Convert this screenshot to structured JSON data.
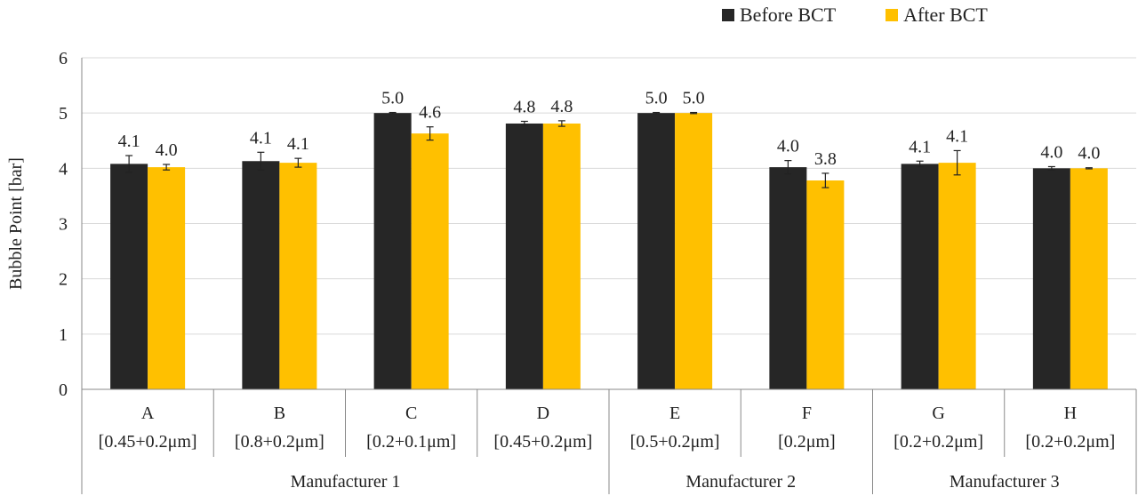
{
  "chart_data": {
    "type": "bar",
    "ylabel": "Bubble Point [bar]",
    "ylim": [
      0,
      6
    ],
    "yticks": [
      "0",
      "1",
      "2",
      "3",
      "4",
      "5",
      "6"
    ],
    "grid": true,
    "legend_position": "top-right",
    "categories": [
      {
        "letter": "A",
        "spec": "[0.45+0.2μm]"
      },
      {
        "letter": "B",
        "spec": "[0.8+0.2μm]"
      },
      {
        "letter": "C",
        "spec": "[0.2+0.1μm]"
      },
      {
        "letter": "D",
        "spec": "[0.45+0.2μm]"
      },
      {
        "letter": "E",
        "spec": "[0.5+0.2μm]"
      },
      {
        "letter": "F",
        "spec": "[0.2μm]"
      },
      {
        "letter": "G",
        "spec": "[0.2+0.2μm]"
      },
      {
        "letter": "H",
        "spec": "[0.2+0.2μm]"
      }
    ],
    "groups": [
      {
        "name": "Manufacturer 1",
        "categories": [
          "A",
          "B",
          "C",
          "D"
        ]
      },
      {
        "name": "Manufacturer 2",
        "categories": [
          "E",
          "F"
        ]
      },
      {
        "name": "Manufacturer 3",
        "categories": [
          "G",
          "H"
        ]
      }
    ],
    "series": [
      {
        "name": "Before BCT",
        "color": "#262626",
        "values": [
          4.08,
          4.13,
          5.0,
          4.81,
          5.0,
          4.02,
          4.08,
          4.0
        ],
        "errors": [
          0.15,
          0.16,
          0.01,
          0.04,
          0.01,
          0.12,
          0.05,
          0.03
        ],
        "labels": [
          "4.1",
          "4.1",
          "5.0",
          "4.8",
          "5.0",
          "4.0",
          "4.1",
          "4.0"
        ]
      },
      {
        "name": "After BCT",
        "color": "#FFC000",
        "values": [
          4.02,
          4.1,
          4.63,
          4.81,
          5.0,
          3.78,
          4.1,
          4.0
        ],
        "errors": [
          0.05,
          0.08,
          0.12,
          0.05,
          0.01,
          0.13,
          0.22,
          0.01
        ],
        "labels": [
          "4.0",
          "4.1",
          "4.6",
          "4.8",
          "5.0",
          "3.8",
          "4.1",
          "4.0"
        ]
      }
    ]
  }
}
